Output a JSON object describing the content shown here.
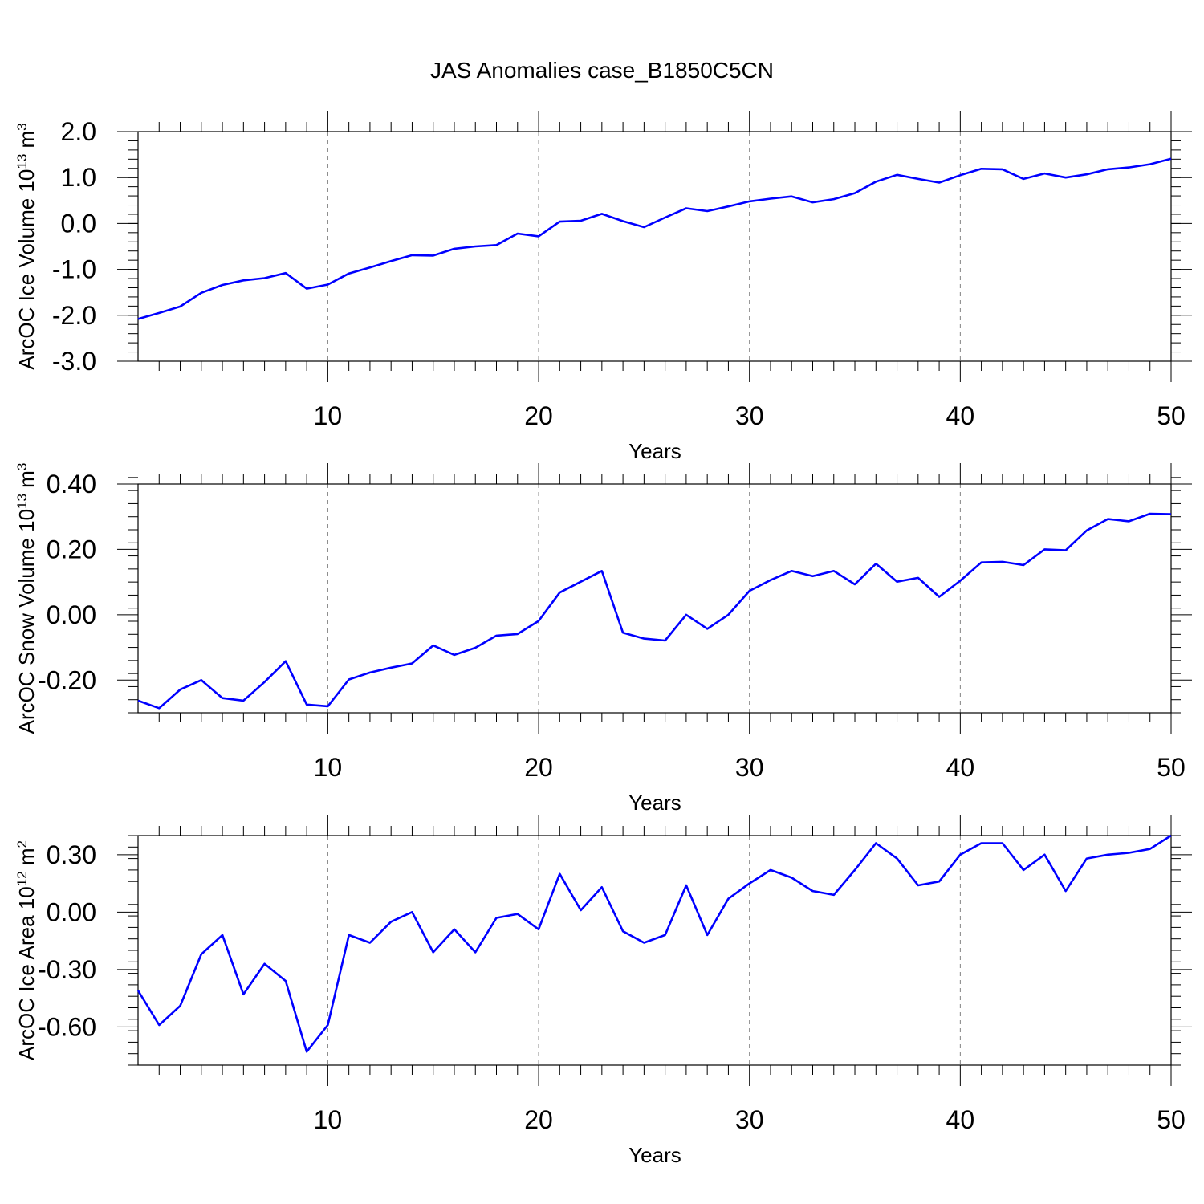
{
  "title": "JAS Anomalies case_B1850C5CN",
  "colors": {
    "line": "#0000ff",
    "axis": "#000000",
    "grid": "#808080",
    "background": "#ffffff"
  },
  "chart_data": [
    {
      "type": "line",
      "ylabel": {
        "main": "ArcOC Ice Volume 10",
        "exp": "13",
        "unit": " m",
        "unit_exp": "3"
      },
      "xlabel": "Years",
      "xlim": [
        1,
        50
      ],
      "ylim": [
        -3.0,
        2.0
      ],
      "xticks": [
        10,
        20,
        30,
        40,
        50
      ],
      "xtick_labels": [
        "10",
        "20",
        "30",
        "40",
        "50"
      ],
      "yticks": [
        2.0,
        1.0,
        0.0,
        -1.0,
        -2.0,
        -3.0
      ],
      "ytick_labels": [
        "2.0",
        "1.0",
        "0.0",
        "-1.0",
        "-2.0",
        "-3.0"
      ],
      "grid_x": true,
      "x": [
        1,
        2,
        3,
        4,
        5,
        6,
        7,
        8,
        9,
        10,
        11,
        12,
        13,
        14,
        15,
        16,
        17,
        18,
        19,
        20,
        21,
        22,
        23,
        24,
        25,
        26,
        27,
        28,
        29,
        30,
        31,
        32,
        33,
        34,
        35,
        36,
        37,
        38,
        39,
        40,
        41,
        42,
        43,
        44,
        45,
        46,
        47,
        48,
        49,
        50
      ],
      "values": [
        -2.08,
        -1.95,
        -1.81,
        -1.51,
        -1.34,
        -1.24,
        -1.19,
        -1.08,
        -1.42,
        -1.33,
        -1.09,
        -0.96,
        -0.82,
        -0.69,
        -0.7,
        -0.55,
        -0.5,
        -0.47,
        -0.22,
        -0.28,
        0.04,
        0.06,
        0.21,
        0.05,
        -0.08,
        0.13,
        0.33,
        0.27,
        0.37,
        0.48,
        0.54,
        0.59,
        0.46,
        0.53,
        0.66,
        0.91,
        1.06,
        0.97,
        0.89,
        1.05,
        1.19,
        1.18,
        0.97,
        1.09,
        1.0,
        1.07,
        1.18,
        1.22,
        1.29,
        1.41
      ]
    },
    {
      "type": "line",
      "ylabel": {
        "main": "ArcOC Snow Volume 10",
        "exp": "13",
        "unit": " m",
        "unit_exp": "3"
      },
      "xlabel": "Years",
      "xlim": [
        1,
        50
      ],
      "ylim": [
        -0.3,
        0.4
      ],
      "xticks": [
        10,
        20,
        30,
        40,
        50
      ],
      "xtick_labels": [
        "10",
        "20",
        "30",
        "40",
        "50"
      ],
      "yticks": [
        0.4,
        0.2,
        0.0,
        -0.2
      ],
      "ytick_labels": [
        "0.40",
        "0.20",
        "0.00",
        "-0.20"
      ],
      "grid_x": true,
      "x": [
        1,
        2,
        3,
        4,
        5,
        6,
        7,
        8,
        9,
        10,
        11,
        12,
        13,
        14,
        15,
        16,
        17,
        18,
        19,
        20,
        21,
        22,
        23,
        24,
        25,
        26,
        27,
        28,
        29,
        30,
        31,
        32,
        33,
        34,
        35,
        36,
        37,
        38,
        39,
        40,
        41,
        42,
        43,
        44,
        45,
        46,
        47,
        48,
        49,
        50
      ],
      "values": [
        -0.263,
        -0.286,
        -0.229,
        -0.2,
        -0.255,
        -0.263,
        -0.206,
        -0.142,
        -0.275,
        -0.28,
        -0.198,
        -0.177,
        -0.162,
        -0.149,
        -0.094,
        -0.123,
        -0.101,
        -0.064,
        -0.059,
        -0.019,
        0.068,
        0.101,
        0.134,
        -0.055,
        -0.073,
        -0.079,
        0.0,
        -0.043,
        0.0,
        0.073,
        0.106,
        0.134,
        0.118,
        0.134,
        0.093,
        0.156,
        0.101,
        0.113,
        0.055,
        0.104,
        0.16,
        0.162,
        0.152,
        0.2,
        0.197,
        0.258,
        0.293,
        0.286,
        0.309,
        0.308
      ]
    },
    {
      "type": "line",
      "ylabel": {
        "main": "ArcOC Ice Area 10",
        "exp": "12",
        "unit": " m",
        "unit_exp": "2"
      },
      "xlabel": "Years",
      "xlim": [
        1,
        50
      ],
      "ylim": [
        -0.8,
        0.4
      ],
      "xticks": [
        10,
        20,
        30,
        40,
        50
      ],
      "xtick_labels": [
        "10",
        "20",
        "30",
        "40",
        "50"
      ],
      "yticks": [
        0.3,
        0.0,
        -0.3,
        -0.6
      ],
      "ytick_labels": [
        "0.30",
        "0.00",
        "-0.30",
        "-0.60"
      ],
      "grid_x": true,
      "x": [
        1,
        2,
        3,
        4,
        5,
        6,
        7,
        8,
        9,
        10,
        11,
        12,
        13,
        14,
        15,
        16,
        17,
        18,
        19,
        20,
        21,
        22,
        23,
        24,
        25,
        26,
        27,
        28,
        29,
        30,
        31,
        32,
        33,
        34,
        35,
        36,
        37,
        38,
        39,
        40,
        41,
        42,
        43,
        44,
        45,
        46,
        47,
        48,
        49,
        50
      ],
      "values": [
        -0.41,
        -0.59,
        -0.49,
        -0.22,
        -0.12,
        -0.43,
        -0.27,
        -0.36,
        -0.73,
        -0.59,
        -0.12,
        -0.16,
        -0.05,
        0.0,
        -0.21,
        -0.09,
        -0.21,
        -0.03,
        -0.01,
        -0.09,
        0.2,
        0.01,
        0.13,
        -0.1,
        -0.16,
        -0.12,
        0.14,
        -0.12,
        0.07,
        0.15,
        0.22,
        0.18,
        0.11,
        0.09,
        0.22,
        0.36,
        0.28,
        0.14,
        0.16,
        0.3,
        0.36,
        0.36,
        0.22,
        0.3,
        0.11,
        0.28,
        0.3,
        0.31,
        0.33,
        0.4
      ]
    }
  ]
}
